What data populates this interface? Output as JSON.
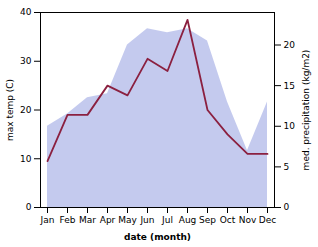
{
  "chart_data": {
    "type": "line",
    "categories": [
      "Jan",
      "Feb",
      "Mar",
      "Apr",
      "May",
      "Jun",
      "Jul",
      "Aug",
      "Sep",
      "Oct",
      "Nov",
      "Dec"
    ],
    "xlabel": "date (month)",
    "ylabel": "max temp (C)",
    "y2label": "med. precipitation (kg/m2)",
    "ylim": [
      0,
      40
    ],
    "yticks": [
      0,
      10,
      20,
      30,
      40
    ],
    "y2lim": [
      0,
      24
    ],
    "y2ticks": [
      0,
      5,
      10,
      15,
      20
    ],
    "grid": false,
    "series": [
      {
        "type": "area",
        "axis": "y2",
        "color": "#b0b8e8",
        "values": [
          10.0,
          11.5,
          13.5,
          14.0,
          20.0,
          22.0,
          21.5,
          22.0,
          20.5,
          13.0,
          7.0,
          13.0
        ]
      },
      {
        "type": "line",
        "color": "#8b2040",
        "values": [
          9.5,
          19.0,
          19.0,
          25.0,
          23.0,
          30.5,
          28.0,
          38.5,
          20.0,
          15.0,
          11.0,
          11.0
        ]
      }
    ]
  }
}
